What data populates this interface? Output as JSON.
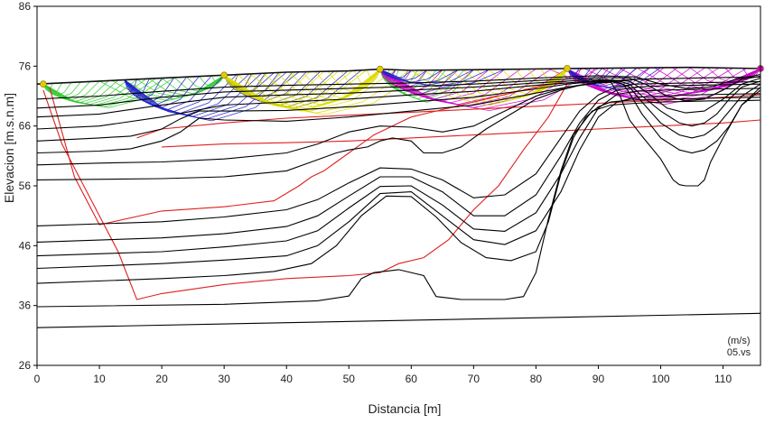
{
  "chart_data": {
    "type": "line",
    "title": "",
    "xlabel": "Distancia [m]",
    "ylabel": "Elevacion [m.s.n.m]",
    "xlim": [
      0,
      116
    ],
    "ylim": [
      26,
      86
    ],
    "x_ticks": [
      0,
      10,
      20,
      30,
      40,
      50,
      60,
      70,
      80,
      90,
      100,
      110
    ],
    "y_ticks": [
      26,
      36,
      46,
      56,
      66,
      76,
      86
    ],
    "grid": false,
    "legend": "none",
    "annotations": [
      "(m/s)",
      "05.vs"
    ],
    "colors": {
      "contours": "#000000",
      "ray_paths": "#e02020",
      "ray_green": "#33cc33",
      "ray_blue": "#2222cc",
      "ray_yellow": "#dddd00",
      "ray_magenta": "#cc00cc",
      "shot_markers": "#ddcc00",
      "end_marker": "#cc00cc"
    },
    "surface": {
      "x": [
        0,
        10,
        20,
        30,
        40,
        50,
        55,
        60,
        70,
        85,
        95,
        105,
        116
      ],
      "y": [
        73.0,
        73.5,
        74.0,
        74.5,
        75.0,
        75.2,
        75.5,
        75.3,
        75.4,
        75.6,
        75.7,
        75.8,
        75.6
      ]
    },
    "shots": [
      {
        "x": 1,
        "y": 73.0
      },
      {
        "x": 30,
        "y": 74.5
      },
      {
        "x": 55,
        "y": 75.5
      },
      {
        "x": 85,
        "y": 75.6
      },
      {
        "x": 116,
        "y": 75.6
      }
    ],
    "contours": [
      {
        "x": [
          0,
          116
        ],
        "y": [
          32.3,
          34.7
        ]
      },
      {
        "x": [
          0,
          30,
          45,
          50,
          52,
          54,
          58,
          62,
          64,
          68,
          75,
          78,
          80,
          82,
          84,
          86,
          89,
          92,
          96,
          100,
          104,
          108,
          112,
          116
        ],
        "y": [
          35.8,
          36.2,
          36.8,
          37.6,
          40.5,
          41.5,
          42.0,
          41.0,
          37.5,
          37.0,
          37.0,
          37.5,
          41.5,
          50.5,
          58.5,
          64.5,
          68.5,
          69.5,
          69.8,
          70.0,
          70.1,
          70.2,
          70.2,
          70.3
        ]
      },
      {
        "x": [
          0,
          20,
          30,
          38,
          44,
          48,
          52,
          56,
          60,
          64,
          68,
          72,
          76,
          80,
          82,
          84,
          86,
          88,
          90,
          92,
          95,
          98,
          102,
          106,
          110,
          116
        ],
        "y": [
          39.7,
          40.5,
          41.0,
          41.7,
          43.0,
          46.0,
          51.0,
          54.3,
          54.2,
          50.8,
          46.5,
          44.0,
          43.5,
          45.0,
          50.0,
          58.0,
          64.0,
          67.5,
          69.2,
          70.0,
          70.3,
          70.4,
          70.5,
          70.6,
          70.7,
          70.8
        ]
      },
      {
        "x": [
          0,
          20,
          30,
          40,
          45,
          50,
          55,
          60,
          65,
          70,
          75,
          80,
          84,
          87,
          90,
          93,
          96,
          100,
          105,
          110,
          116
        ],
        "y": [
          42.2,
          43.0,
          43.6,
          44.3,
          46.0,
          50.0,
          54.7,
          55.0,
          51.0,
          47.0,
          46.2,
          48.5,
          55.0,
          62.0,
          67.5,
          70.0,
          70.8,
          71.0,
          71.2,
          71.3,
          71.4
        ]
      },
      {
        "x": [
          0,
          20,
          30,
          40,
          45,
          50,
          55,
          60,
          65,
          70,
          75,
          80,
          84,
          87,
          90,
          93,
          96,
          100,
          105,
          110,
          116
        ],
        "y": [
          44.3,
          45.0,
          45.8,
          46.8,
          48.5,
          52.3,
          55.9,
          56.0,
          52.8,
          48.8,
          48.4,
          51.5,
          58.0,
          64.0,
          69.0,
          71.3,
          71.8,
          72.0,
          72.1,
          72.2,
          72.3
        ]
      },
      {
        "x": [
          0,
          20,
          30,
          40,
          45,
          50,
          55,
          60,
          65,
          70,
          75,
          80,
          84,
          87,
          90,
          93,
          96,
          100,
          105,
          110,
          116
        ],
        "y": [
          46.6,
          47.3,
          48.0,
          49.2,
          51.0,
          54.3,
          57.5,
          57.5,
          55.0,
          51.0,
          51.0,
          54.5,
          61.0,
          66.5,
          70.3,
          72.0,
          72.5,
          72.7,
          72.8,
          72.9,
          73.0
        ]
      },
      {
        "x": [
          0,
          20,
          30,
          40,
          45,
          50,
          55,
          60,
          65,
          70,
          75,
          80,
          84,
          87,
          90,
          93,
          96,
          100,
          105,
          110,
          116
        ],
        "y": [
          49.3,
          50.0,
          50.8,
          52.0,
          53.7,
          56.5,
          59.0,
          58.8,
          57.0,
          54.0,
          54.5,
          58.0,
          64.0,
          68.5,
          71.2,
          72.6,
          73.0,
          73.1,
          73.2,
          73.3,
          73.4
        ]
      },
      {
        "x": [
          0,
          20,
          30,
          40,
          44,
          48,
          50,
          53,
          55,
          57,
          60,
          62,
          65,
          68,
          70,
          72,
          76,
          80,
          84,
          87,
          90,
          93,
          96,
          100,
          105,
          110,
          116
        ],
        "y": [
          57.0,
          57.2,
          57.5,
          58.5,
          60.0,
          61.5,
          62.0,
          62.5,
          63.5,
          64.0,
          63.5,
          61.5,
          61.5,
          62.5,
          64.0,
          65.5,
          68.0,
          70.5,
          72.0,
          72.8,
          73.3,
          73.6,
          73.8,
          73.9,
          74.0,
          74.1,
          74.2
        ]
      },
      {
        "x": [
          0,
          10,
          20,
          30,
          40,
          45,
          50,
          55,
          60,
          65,
          70,
          75,
          80,
          85,
          90,
          92,
          93.5,
          95,
          97,
          100,
          102,
          103,
          104,
          106,
          107,
          108,
          110,
          113,
          116
        ],
        "y": [
          59.5,
          59.8,
          60.0,
          60.5,
          61.5,
          63.0,
          65.0,
          66.0,
          65.8,
          65.0,
          66.0,
          68.5,
          71.0,
          72.5,
          73.2,
          73.3,
          71.0,
          67.0,
          64.3,
          60.5,
          57.0,
          56.2,
          56.0,
          56.0,
          57.0,
          60.0,
          64.0,
          69.5,
          72.0
        ]
      },
      {
        "x": [
          0,
          10,
          15,
          20,
          23,
          26,
          30,
          40,
          50,
          60,
          70,
          80,
          85,
          90,
          92,
          94,
          95,
          97,
          100,
          103,
          105,
          107,
          109,
          111,
          113,
          116
        ],
        "y": [
          61.5,
          61.8,
          62.2,
          63.5,
          65.0,
          67.3,
          67.0,
          66.8,
          67.5,
          68.5,
          69.5,
          71.5,
          72.5,
          73.3,
          73.4,
          73.0,
          71.5,
          68.0,
          64.0,
          62.0,
          61.5,
          62.0,
          63.5,
          66.0,
          69.5,
          72.5
        ]
      },
      {
        "x": [
          0,
          10,
          15,
          20,
          23,
          26,
          30,
          40,
          50,
          60,
          70,
          80,
          85,
          90,
          93,
          95,
          97,
          100,
          103,
          105,
          107,
          109,
          111,
          113,
          116
        ],
        "y": [
          63.5,
          64.0,
          64.3,
          65.5,
          67.2,
          68.5,
          68.5,
          68.6,
          69.2,
          70.0,
          70.8,
          72.2,
          73.0,
          73.5,
          73.4,
          72.5,
          70.0,
          66.5,
          64.5,
          64.0,
          64.5,
          66.0,
          68.5,
          71.0,
          73.0
        ]
      },
      {
        "x": [
          0,
          10,
          20,
          30,
          40,
          50,
          60,
          70,
          80,
          90,
          93,
          95,
          97,
          100,
          103,
          105,
          107,
          109,
          111,
          113,
          116
        ],
        "y": [
          65.5,
          66.0,
          67.5,
          69.5,
          70.0,
          70.5,
          71.2,
          71.8,
          72.8,
          73.6,
          73.6,
          73.0,
          71.0,
          68.5,
          66.5,
          66.0,
          66.5,
          68.0,
          70.5,
          72.5,
          73.5
        ]
      },
      {
        "x": [
          0,
          10,
          20,
          30,
          40,
          50,
          60,
          70,
          80,
          90,
          95,
          98,
          101,
          104,
          107,
          110,
          113,
          116
        ],
        "y": [
          67.5,
          68.0,
          69.5,
          70.8,
          71.2,
          71.5,
          72.0,
          72.5,
          73.2,
          73.8,
          73.5,
          71.5,
          69.0,
          68.2,
          68.5,
          70.5,
          73.0,
          74.0
        ]
      },
      {
        "x": [
          0,
          10,
          20,
          30,
          40,
          50,
          60,
          70,
          80,
          90,
          95,
          98,
          101,
          104,
          107,
          110,
          113,
          116
        ],
        "y": [
          69.0,
          69.5,
          70.8,
          71.7,
          72.0,
          72.3,
          72.6,
          73.0,
          73.6,
          74.1,
          74.0,
          72.8,
          71.0,
          70.2,
          70.5,
          72.0,
          73.8,
          74.3
        ]
      },
      {
        "x": [
          0,
          10,
          20,
          30,
          40,
          50,
          60,
          70,
          80,
          90,
          96,
          100,
          104,
          108,
          112,
          116
        ],
        "y": [
          70.5,
          71.0,
          71.8,
          72.5,
          72.8,
          73.0,
          73.2,
          73.5,
          74.0,
          74.4,
          74.2,
          73.0,
          72.3,
          72.5,
          73.8,
          74.6
        ]
      }
    ],
    "red_boundaries": [
      {
        "x": [
          2,
          6,
          10,
          20,
          30,
          38,
          42,
          44,
          46,
          48,
          50,
          52,
          54,
          56,
          58,
          60,
          62,
          64,
          66,
          68,
          72,
          76,
          80,
          85
        ],
        "y": [
          72.5,
          57.5,
          49.5,
          51.8,
          52.5,
          53.5,
          56.0,
          57.5,
          58.5,
          60.0,
          61.5,
          63.0,
          64.5,
          65.5,
          66.5,
          67.5,
          68.0,
          68.5,
          69.0,
          69.5,
          70.5,
          71.5,
          72.5,
          73.5
        ]
      },
      {
        "x": [
          1,
          4,
          8,
          13,
          16,
          20,
          30,
          40,
          50,
          55,
          58,
          62,
          66,
          70,
          74,
          78,
          82,
          85
        ],
        "y": [
          72.0,
          63.0,
          55.0,
          45.0,
          37.0,
          38.0,
          39.5,
          40.5,
          41.0,
          41.5,
          43.0,
          44.0,
          47.0,
          52.0,
          56.0,
          62.0,
          67.5,
          73.0
        ]
      },
      {
        "x": [
          16,
          20,
          30,
          40,
          50,
          60,
          70,
          80,
          90,
          100,
          110,
          116
        ],
        "y": [
          64.0,
          65.5,
          66.5,
          67.3,
          67.8,
          68.3,
          68.8,
          69.3,
          69.8,
          70.3,
          70.8,
          71.2
        ]
      },
      {
        "x": [
          20,
          30,
          40,
          50,
          60,
          70,
          80,
          90,
          100,
          110,
          116
        ],
        "y": [
          62.5,
          63.0,
          63.2,
          63.5,
          64.0,
          64.5,
          65.0,
          65.5,
          66.0,
          66.5,
          67.0
        ]
      }
    ],
    "ray_fans": [
      {
        "color": "ray_green",
        "x_from": 1,
        "x_to": 22,
        "depth": 4.5,
        "count": 14
      },
      {
        "color": "ray_green",
        "x_from": 30,
        "x_to": 10,
        "depth": 4.0,
        "count": 10
      },
      {
        "color": "ray_blue",
        "x_from": 14,
        "x_to": 42,
        "depth": 7.5,
        "count": 14
      },
      {
        "color": "ray_blue",
        "x_from": 30,
        "x_to": 52,
        "depth": 6.0,
        "count": 10
      },
      {
        "color": "ray_yellow",
        "x_from": 30,
        "x_to": 62,
        "depth": 7.0,
        "count": 14
      },
      {
        "color": "ray_yellow",
        "x_from": 55,
        "x_to": 30,
        "depth": 6.5,
        "count": 12
      },
      {
        "color": "ray_green",
        "x_from": 55,
        "x_to": 70,
        "depth": 5.5,
        "count": 10
      },
      {
        "color": "ray_magenta",
        "x_from": 55,
        "x_to": 90,
        "depth": 7.0,
        "count": 14
      },
      {
        "color": "ray_magenta",
        "x_from": 85,
        "x_to": 116,
        "depth": 6.0,
        "count": 14
      },
      {
        "color": "ray_magenta",
        "x_from": 116,
        "x_to": 82,
        "depth": 5.0,
        "count": 12
      },
      {
        "color": "ray_yellow",
        "x_from": 85,
        "x_to": 60,
        "depth": 6.0,
        "count": 12
      },
      {
        "color": "ray_blue",
        "x_from": 85,
        "x_to": 100,
        "depth": 3.5,
        "count": 8
      },
      {
        "color": "ray_blue",
        "x_from": 55,
        "x_to": 75,
        "depth": 3.0,
        "count": 8
      }
    ]
  }
}
